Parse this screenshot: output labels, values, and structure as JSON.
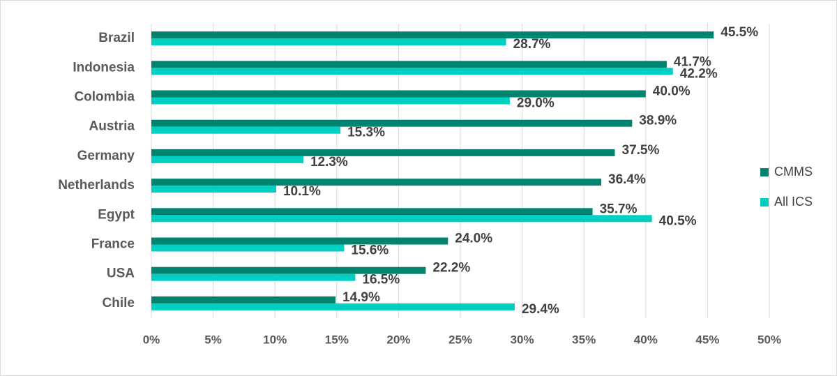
{
  "chart_data": {
    "type": "bar",
    "orientation": "horizontal",
    "categories": [
      "Brazil",
      "Indonesia",
      "Colombia",
      "Austria",
      "Germany",
      "Netherlands",
      "Egypt",
      "France",
      "USA",
      "Chile"
    ],
    "series": [
      {
        "name": "CMMS",
        "color": "#00846f",
        "values": [
          45.5,
          41.7,
          40.0,
          38.9,
          37.5,
          36.4,
          35.7,
          24.0,
          22.2,
          14.9
        ],
        "value_labels": [
          "45.5%",
          "41.7%",
          "40.0%",
          "38.9%",
          "37.5%",
          "36.4%",
          "35.7%",
          "24.0%",
          "22.2%",
          "14.9%"
        ]
      },
      {
        "name": "All ICS",
        "color": "#00cfc1",
        "values": [
          28.7,
          42.2,
          29.0,
          15.3,
          12.3,
          10.1,
          40.5,
          15.6,
          16.5,
          29.4
        ],
        "value_labels": [
          "28.7%",
          "42.2%",
          "29.0%",
          "15.3%",
          "12.3%",
          "10.1%",
          "40.5%",
          "15.6%",
          "16.5%",
          "29.4%"
        ]
      }
    ],
    "xlim": [
      0,
      50
    ],
    "xticks": [
      {
        "value": 0,
        "label": "0%"
      },
      {
        "value": 5,
        "label": "5%"
      },
      {
        "value": 10,
        "label": "10%"
      },
      {
        "value": 15,
        "label": "15%"
      },
      {
        "value": 20,
        "label": "20%"
      },
      {
        "value": 25,
        "label": "25%"
      },
      {
        "value": 30,
        "label": "30%"
      },
      {
        "value": 35,
        "label": "35%"
      },
      {
        "value": 40,
        "label": "40%"
      },
      {
        "value": 45,
        "label": "45%"
      },
      {
        "value": 50,
        "label": "50%"
      }
    ],
    "grid": true,
    "legend": "right"
  }
}
